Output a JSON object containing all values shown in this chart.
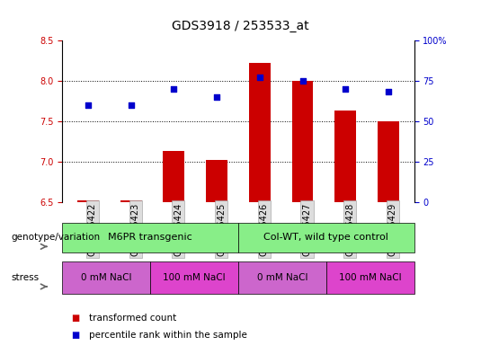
{
  "title": "GDS3918 / 253533_at",
  "samples": [
    "GSM455422",
    "GSM455423",
    "GSM455424",
    "GSM455425",
    "GSM455426",
    "GSM455427",
    "GSM455428",
    "GSM455429"
  ],
  "red_values": [
    6.52,
    6.52,
    7.13,
    7.02,
    8.22,
    8.0,
    7.63,
    7.5
  ],
  "blue_values": [
    60,
    60,
    70,
    65,
    77,
    75,
    70,
    68
  ],
  "ylim_left": [
    6.5,
    8.5
  ],
  "ylim_right": [
    0,
    100
  ],
  "yticks_left": [
    6.5,
    7.0,
    7.5,
    8.0,
    8.5
  ],
  "yticks_right": [
    0,
    25,
    50,
    75,
    100
  ],
  "ytick_right_labels": [
    "0",
    "25",
    "50",
    "75",
    "100%"
  ],
  "bar_color": "#cc0000",
  "dot_color": "#0000cc",
  "bar_width": 0.5,
  "genotype_groups": [
    {
      "label": "M6PR transgenic",
      "start": 0,
      "end": 3,
      "color": "#88ee88"
    },
    {
      "label": "Col-WT, wild type control",
      "start": 4,
      "end": 7,
      "color": "#88ee88"
    }
  ],
  "stress_groups": [
    {
      "label": "0 mM NaCl",
      "start": 0,
      "end": 1,
      "color": "#cc66cc"
    },
    {
      "label": "100 mM NaCl",
      "start": 2,
      "end": 3,
      "color": "#dd44cc"
    },
    {
      "label": "0 mM NaCl",
      "start": 4,
      "end": 5,
      "color": "#cc66cc"
    },
    {
      "label": "100 mM NaCl",
      "start": 6,
      "end": 7,
      "color": "#dd44cc"
    }
  ],
  "legend_red_label": "transformed count",
  "legend_blue_label": "percentile rank within the sample",
  "genotype_label": "genotype/variation",
  "stress_label": "stress",
  "title_fontsize": 10,
  "tick_fontsize": 7,
  "label_fontsize": 8,
  "annot_fontsize": 8
}
